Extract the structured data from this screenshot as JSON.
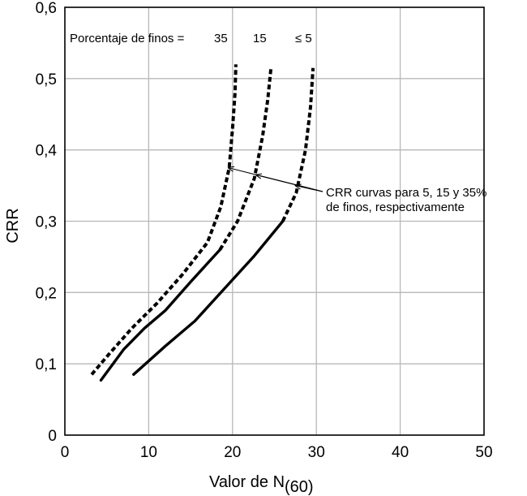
{
  "chart_data": {
    "type": "line",
    "xlabel": "Valor de N",
    "xlabel_sub": "(60)",
    "ylabel": "CRR",
    "xlim": [
      0,
      50
    ],
    "ylim": [
      0,
      0.6
    ],
    "grid": true,
    "x_ticks": [
      0,
      10,
      20,
      30,
      40,
      50
    ],
    "x_tick_labels": [
      "0",
      "10",
      "20",
      "30",
      "40",
      "50"
    ],
    "y_ticks": [
      0,
      0.1,
      0.2,
      0.3,
      0.4,
      0.5,
      0.6
    ],
    "y_tick_labels": [
      "0",
      "0,1",
      "0,2",
      "0,3",
      "0,4",
      "0,5",
      "0,6"
    ],
    "header": {
      "prefix": "Porcentaje de finos = ",
      "labels": [
        "35",
        "15",
        "≤ 5"
      ]
    },
    "annotation": {
      "lines": [
        "CRR curvas para 5, 15 y 35%",
        "de finos, respectivamente"
      ],
      "arrow_targets": [
        [
          19.5,
          0.375
        ],
        [
          22.8,
          0.365
        ],
        [
          27.5,
          0.35
        ]
      ]
    },
    "series": [
      {
        "fines": "35",
        "solid": [],
        "dashed": [
          [
            3.2,
            0.085
          ],
          [
            5,
            0.11
          ],
          [
            8,
            0.15
          ],
          [
            11,
            0.185
          ],
          [
            14,
            0.225
          ],
          [
            17,
            0.27
          ],
          [
            18.6,
            0.32
          ],
          [
            19.6,
            0.375
          ],
          [
            20,
            0.43
          ],
          [
            20.3,
            0.48
          ],
          [
            20.4,
            0.52
          ]
        ]
      },
      {
        "fines": "15",
        "solid": [
          [
            4.3,
            0.077
          ],
          [
            7,
            0.12
          ],
          [
            9.5,
            0.15
          ],
          [
            12,
            0.175
          ],
          [
            15,
            0.215
          ],
          [
            18.5,
            0.26
          ]
        ],
        "dashed": [
          [
            18.5,
            0.26
          ],
          [
            20.6,
            0.3
          ],
          [
            22.6,
            0.36
          ],
          [
            23.6,
            0.42
          ],
          [
            24.2,
            0.47
          ],
          [
            24.6,
            0.517
          ]
        ]
      },
      {
        "fines": "≤ 5",
        "solid": [
          [
            8.2,
            0.085
          ],
          [
            12,
            0.125
          ],
          [
            15.5,
            0.16
          ],
          [
            19,
            0.205
          ],
          [
            22.5,
            0.25
          ],
          [
            26,
            0.3
          ]
        ],
        "dashed": [
          [
            26,
            0.3
          ],
          [
            27.6,
            0.34
          ],
          [
            28.7,
            0.4
          ],
          [
            29.3,
            0.46
          ],
          [
            29.6,
            0.515
          ]
        ]
      }
    ]
  }
}
